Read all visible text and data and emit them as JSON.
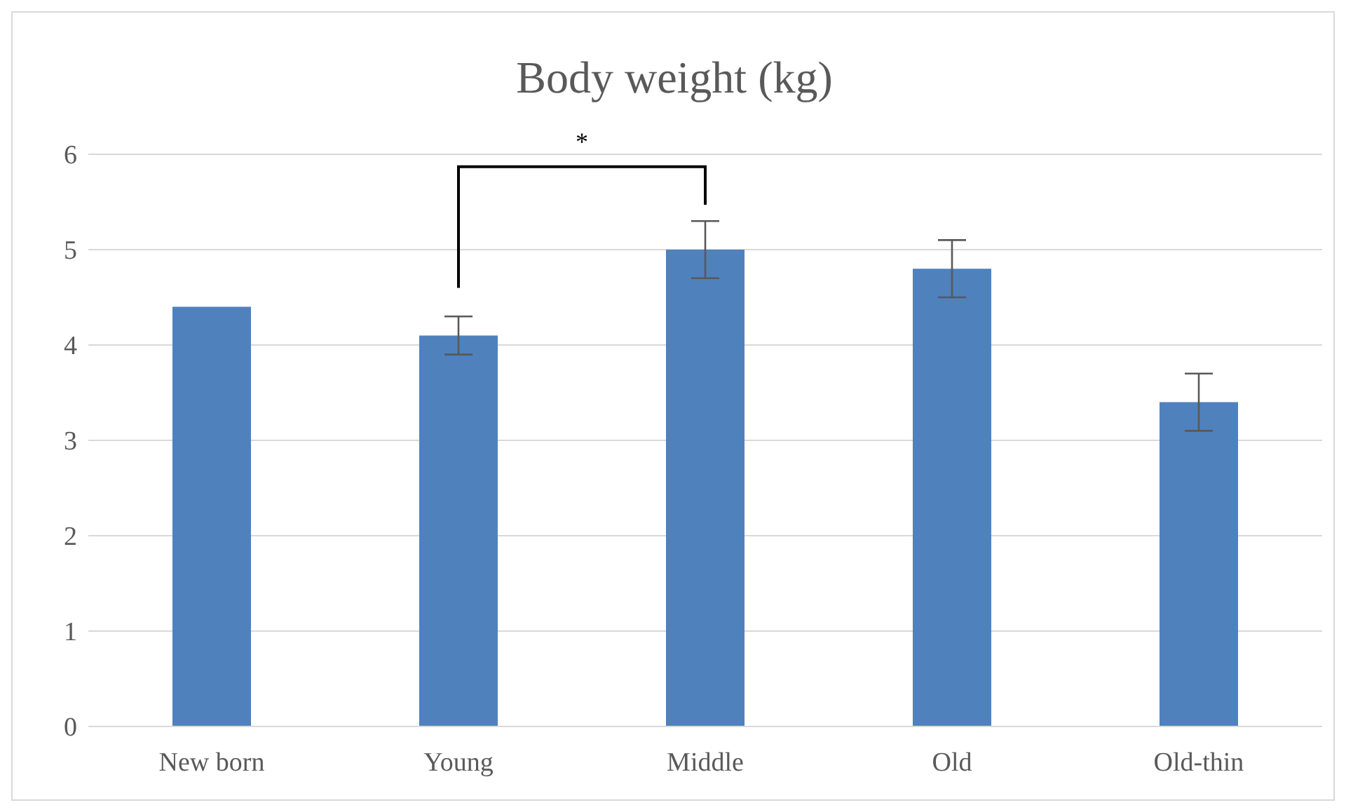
{
  "chart_data": {
    "type": "bar",
    "title": "Body weight (kg)",
    "categories": [
      "New born",
      "Young",
      "Middle",
      "Old",
      "Old-thin"
    ],
    "values": [
      4.4,
      4.1,
      5.0,
      4.8,
      3.4
    ],
    "errors": [
      null,
      0.2,
      0.3,
      0.3,
      0.3
    ],
    "color": "#4f81bd",
    "ylim": [
      0,
      6
    ],
    "yticks": [
      0,
      1,
      2,
      3,
      4,
      5,
      6
    ],
    "grid": "y",
    "annotations": [
      "*"
    ]
  }
}
